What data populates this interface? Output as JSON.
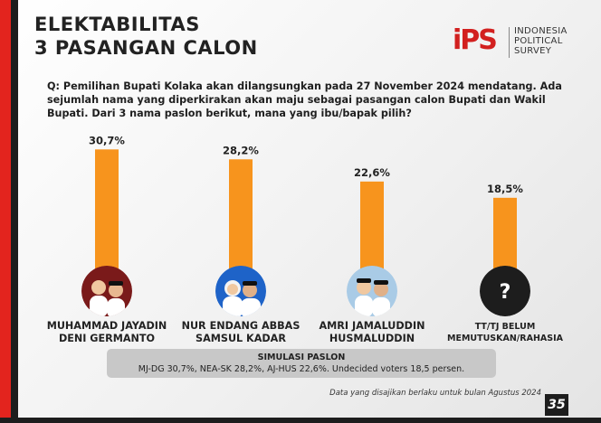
{
  "header": {
    "title_line1": "ELEKTABILITAS",
    "title_line2": "3 PASANGAN CALON"
  },
  "logo": {
    "mark": "iPS",
    "line1": "INDONESIA",
    "line2": "POLITICAL",
    "line3": "SURVEY"
  },
  "question": "Q: Pemilihan Bupati Kolaka akan dilangsungkan pada 27 November 2024 mendatang. Ada sejumlah nama yang diperkirakan akan maju sebagai pasangan calon Bupati dan Wakil Bupati. Dari 3 nama paslon berikut, mana yang ibu/bapak pilih?",
  "chart_data": {
    "type": "bar",
    "categories": [
      "MUHAMMAD JAYADIN DENI GERMANTO",
      "NUR ENDANG ABBAS SAMSUL KADAR",
      "AMRI JAMALUDDIN HUSMALUDDIN",
      "TT/TJ BELUM MEMUTUSKAN/RAHASIA"
    ],
    "values": [
      30.7,
      28.2,
      22.6,
      18.5
    ],
    "value_labels": [
      "30,7%",
      "28,2%",
      "22,6%",
      "18,5%"
    ],
    "ylim": [
      0,
      31
    ],
    "bar_color": "#f7941d",
    "grid": false
  },
  "candidates": [
    {
      "line1": "MUHAMMAD JAYADIN",
      "line2": "DENI GERMANTO",
      "avatar_bg": "#7a1a1a"
    },
    {
      "line1": "NUR ENDANG ABBAS",
      "line2": "SAMSUL KADAR",
      "avatar_bg": "#1e63c8"
    },
    {
      "line1": "AMRI JAMALUDDIN",
      "line2": "HUSMALUDDIN",
      "avatar_bg": "#a9cbe6"
    },
    {
      "line1": "TT/TJ BELUM",
      "line2": "MEMUTUSKAN/RAHASIA",
      "avatar_bg": "#1d1d1d",
      "symbol": "?"
    }
  ],
  "simulation": {
    "title": "SIMULASI PASLON",
    "text": "MJ-DG 30,7%, NEA-SK 28,2%, AJ-HUS 22,6%. Undecided voters  18,5 persen."
  },
  "footnote": "Data yang disajikan berlaku untuk bulan Agustus 2024",
  "page_number": "35",
  "colors": {
    "accent_red": "#e3241e",
    "dark": "#1d1d1d",
    "bar": "#f7941d"
  }
}
